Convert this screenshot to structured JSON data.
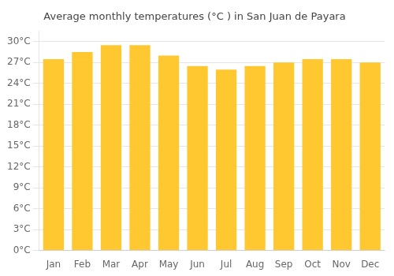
{
  "chart_data": {
    "type": "bar",
    "title": "Average monthly temperatures (°C ) in San Juan de Payara",
    "categories": [
      "Jan",
      "Feb",
      "Mar",
      "Apr",
      "May",
      "Jun",
      "Jul",
      "Aug",
      "Sep",
      "Oct",
      "Nov",
      "Dec"
    ],
    "values": [
      27.5,
      28.5,
      29.5,
      29.5,
      28.0,
      26.5,
      26.0,
      26.5,
      27.0,
      27.5,
      27.5,
      27.0
    ],
    "color": "#FFC830",
    "ylim": [
      0,
      31.5
    ],
    "yticks": [
      {
        "value": 0,
        "label": "0°C"
      },
      {
        "value": 3,
        "label": "3°C"
      },
      {
        "value": 6,
        "label": "6°C"
      },
      {
        "value": 9,
        "label": "9°C"
      },
      {
        "value": 12,
        "label": "12°C"
      },
      {
        "value": 15,
        "label": "15°C"
      },
      {
        "value": 18,
        "label": "18°C"
      },
      {
        "value": 21,
        "label": "21°C"
      },
      {
        "value": 24,
        "label": "24°C"
      },
      {
        "value": 27,
        "label": "27°C"
      },
      {
        "value": 30,
        "label": "30°C"
      }
    ],
    "grid": true
  }
}
